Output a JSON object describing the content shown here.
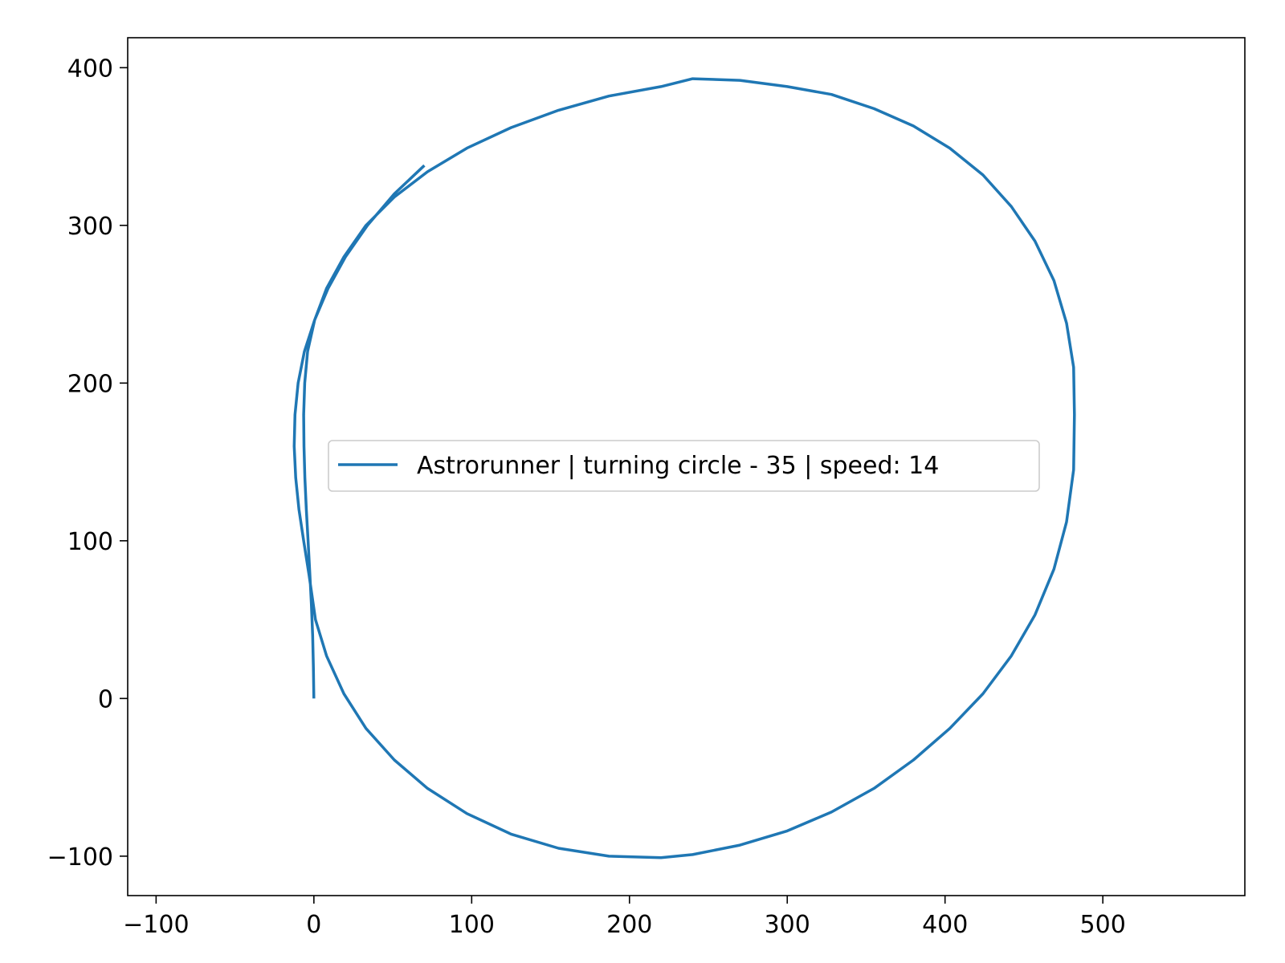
{
  "chart_data": {
    "type": "line",
    "title": "",
    "xlabel": "",
    "ylabel": "",
    "xlim": [
      -118,
      590
    ],
    "ylim": [
      -125,
      419
    ],
    "xticks": [
      -100,
      0,
      100,
      200,
      300,
      400,
      500
    ],
    "yticks": [
      -100,
      0,
      100,
      200,
      300,
      400
    ],
    "xtick_labels": [
      "−100",
      "0",
      "100",
      "200",
      "300",
      "400",
      "500"
    ],
    "ytick_labels": [
      "−100",
      "0",
      "100",
      "200",
      "300",
      "400"
    ],
    "grid": false,
    "legend_position": "center",
    "series": [
      {
        "name": "Astrorunner | turning circle - 35 | speed: 14",
        "color": "#1f77b4",
        "x": [
          0,
          -0.3,
          -0.8,
          -1.6,
          -2.6,
          -3.7,
          -4.8,
          -5.7,
          -6.3,
          -6.5,
          -5.8,
          -4.0,
          0.5,
          8.0,
          19.0,
          33.0,
          51.0,
          72.0,
          97.0,
          125.0,
          155.0,
          187.0,
          220.0,
          240.0,
          270.0,
          300.0,
          328.0,
          355.0,
          380.0,
          403.0,
          424.0,
          442.0,
          457.0,
          469.0,
          477.0,
          481.5,
          482.0,
          481.5,
          477.0,
          469.0,
          457.0,
          442.0,
          424.0,
          403.0,
          380.0,
          355.0,
          328.0,
          300.0,
          270.0,
          240.0,
          220.0,
          187.0,
          155.0,
          125.0,
          97.0,
          72.0,
          51.0,
          33.0,
          19.0,
          8.0,
          1.0,
          -3.0,
          -6.5,
          -9.5,
          -11.5,
          -12.5,
          -12.0,
          -10.0,
          -6.0,
          0.5,
          9.0,
          20.0,
          34.0,
          51.0,
          70.0
        ],
        "y": [
          0,
          20,
          40,
          60,
          80,
          100,
          120,
          140,
          160,
          180,
          200,
          220,
          240,
          260,
          280,
          300,
          318,
          334,
          349,
          362,
          373,
          382,
          388,
          393,
          392,
          388,
          383,
          374,
          363,
          349,
          332,
          312,
          290,
          265,
          238,
          210,
          180,
          145,
          112,
          82,
          53,
          27,
          3,
          -19,
          -39,
          -57,
          -72,
          -84,
          -93,
          -99,
          -101,
          -100,
          -95,
          -86,
          -73,
          -57,
          -39,
          -19,
          3,
          27,
          50,
          78,
          100,
          120,
          140,
          160,
          180,
          200,
          220,
          240,
          260,
          280,
          300,
          320,
          338
        ]
      }
    ]
  }
}
